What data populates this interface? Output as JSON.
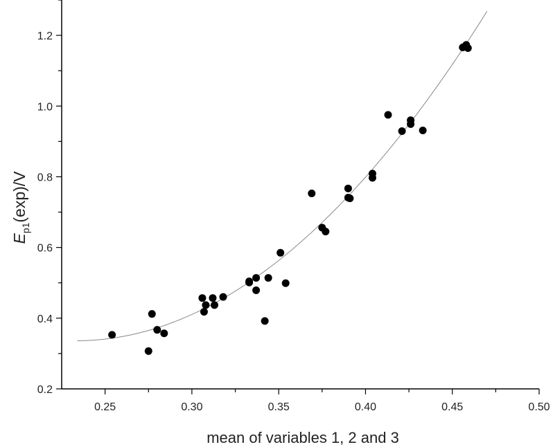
{
  "chart_data": {
    "type": "scatter",
    "title": "",
    "xlabel": "mean of variables 1, 2 and 3",
    "ylabel": {
      "symbol": "E",
      "subscript": "p1",
      "rest": "(exp)/V"
    },
    "xlim": [
      0.225,
      0.5
    ],
    "ylim": [
      0.2,
      1.3
    ],
    "xticks": [
      0.25,
      0.3,
      0.35,
      0.4,
      0.45,
      0.5
    ],
    "xtick_labels": [
      "0.25",
      "0.30",
      "0.35",
      "0.40",
      "0.45",
      "0.50"
    ],
    "yticks": [
      0.2,
      0.4,
      0.6,
      0.8,
      1.0,
      1.2
    ],
    "ytick_labels": [
      "0.2",
      "0.4",
      "0.6",
      "0.8",
      "1.0",
      "1.2"
    ],
    "grid": false,
    "legend": "none",
    "series": [
      {
        "marker": "filled-circle",
        "color": "#000000",
        "points": [
          [
            0.254,
            0.353
          ],
          [
            0.275,
            0.307
          ],
          [
            0.277,
            0.412
          ],
          [
            0.28,
            0.367
          ],
          [
            0.284,
            0.357
          ],
          [
            0.306,
            0.457
          ],
          [
            0.307,
            0.418
          ],
          [
            0.308,
            0.437
          ],
          [
            0.312,
            0.457
          ],
          [
            0.313,
            0.437
          ],
          [
            0.318,
            0.46
          ],
          [
            0.333,
            0.501
          ],
          [
            0.333,
            0.504
          ],
          [
            0.337,
            0.514
          ],
          [
            0.337,
            0.479
          ],
          [
            0.342,
            0.392
          ],
          [
            0.344,
            0.514
          ],
          [
            0.351,
            0.585
          ],
          [
            0.354,
            0.499
          ],
          [
            0.369,
            0.753
          ],
          [
            0.375,
            0.656
          ],
          [
            0.377,
            0.645
          ],
          [
            0.39,
            0.767
          ],
          [
            0.39,
            0.741
          ],
          [
            0.391,
            0.739
          ],
          [
            0.404,
            0.809
          ],
          [
            0.404,
            0.797
          ],
          [
            0.413,
            0.975
          ],
          [
            0.421,
            0.929
          ],
          [
            0.426,
            0.96
          ],
          [
            0.426,
            0.949
          ],
          [
            0.433,
            0.931
          ],
          [
            0.456,
            1.166
          ],
          [
            0.457,
            1.168
          ],
          [
            0.458,
            1.173
          ],
          [
            0.459,
            1.164
          ]
        ]
      }
    ],
    "fit_curve": {
      "type": "quadratic",
      "color": "#888888",
      "x_range": [
        0.234,
        0.47
      ],
      "coefficients": {
        "a": 16.6,
        "h": 0.233,
        "k": 0.336
      }
    }
  }
}
